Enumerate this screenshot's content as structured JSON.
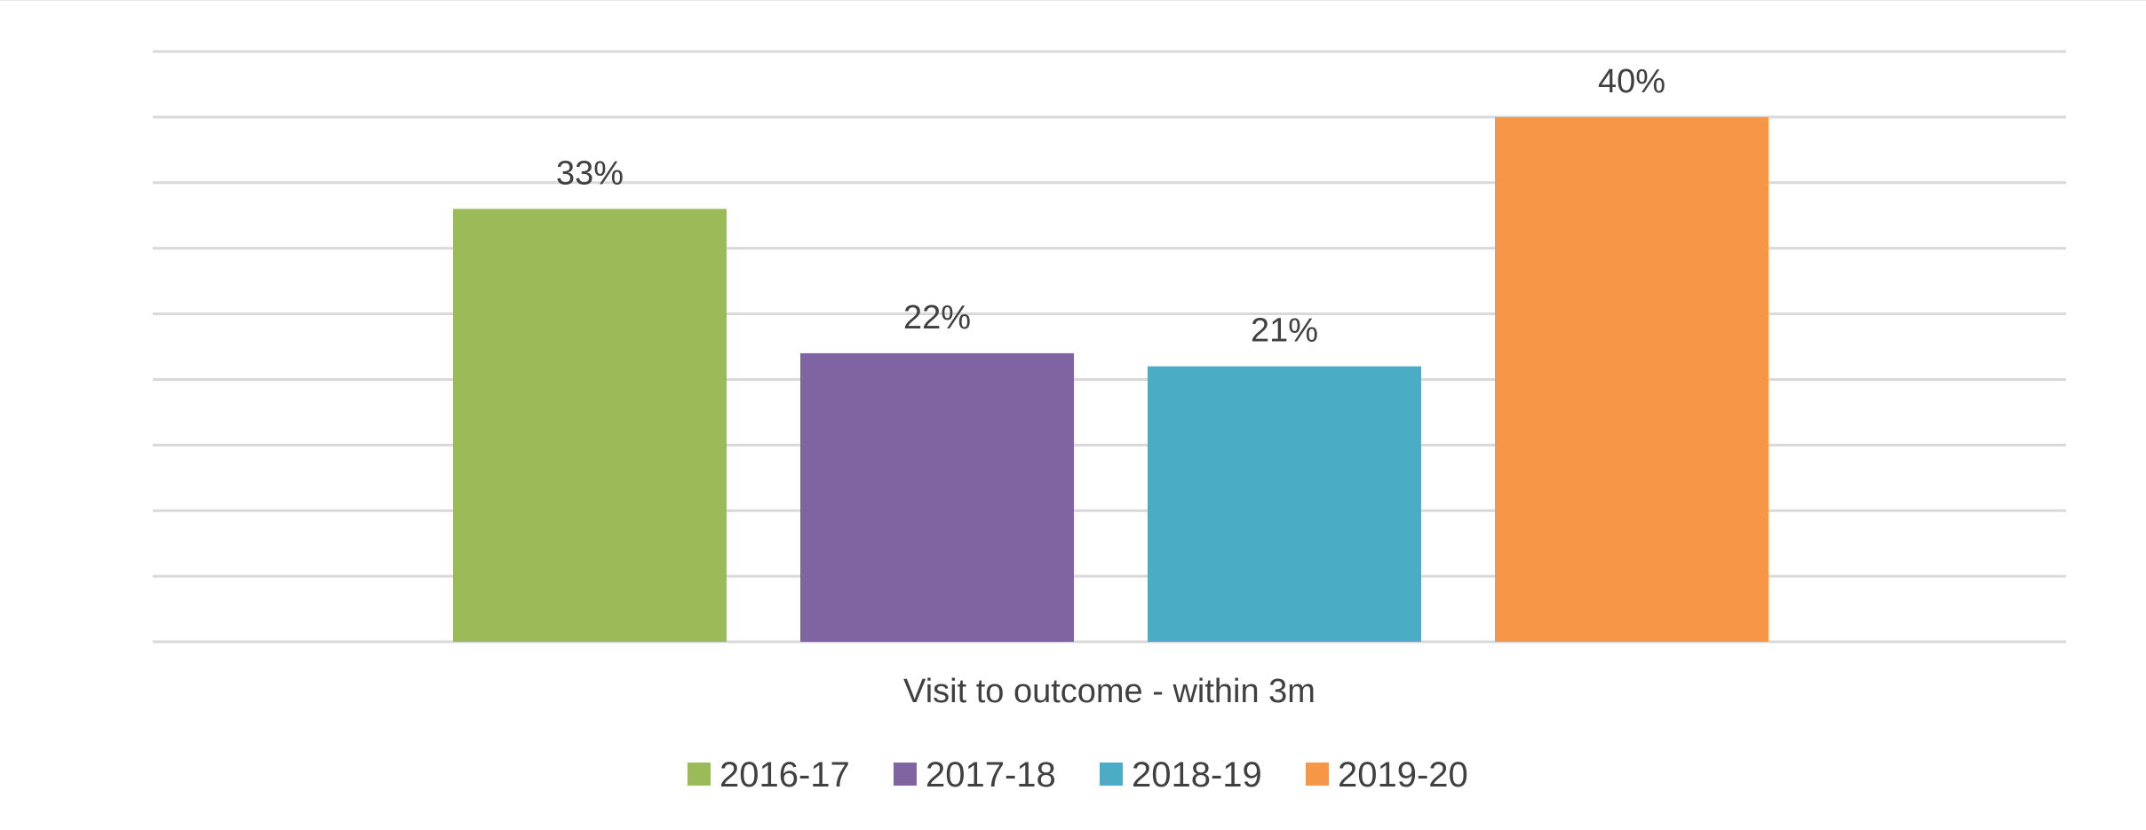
{
  "chart_data": {
    "type": "bar",
    "title": "",
    "xlabel": "",
    "ylabel": "",
    "categories": [
      "Visit to outcome - within 3m"
    ],
    "series": [
      {
        "name": "2016-17",
        "values": [
          33
        ],
        "label": "33%",
        "color": "#9bbb59"
      },
      {
        "name": "2017-18",
        "values": [
          22
        ],
        "label": "22%",
        "color": "#8064a2"
      },
      {
        "name": "2018-19",
        "values": [
          21
        ],
        "label": "21%",
        "color": "#4bacc6"
      },
      {
        "name": "2019-20",
        "values": [
          40
        ],
        "label": "40%",
        "color": "#f79646"
      }
    ],
    "ylim": [
      0,
      45
    ],
    "grid": true,
    "grid_step": 5,
    "y_axis_visible": false,
    "legend": "bottom"
  }
}
